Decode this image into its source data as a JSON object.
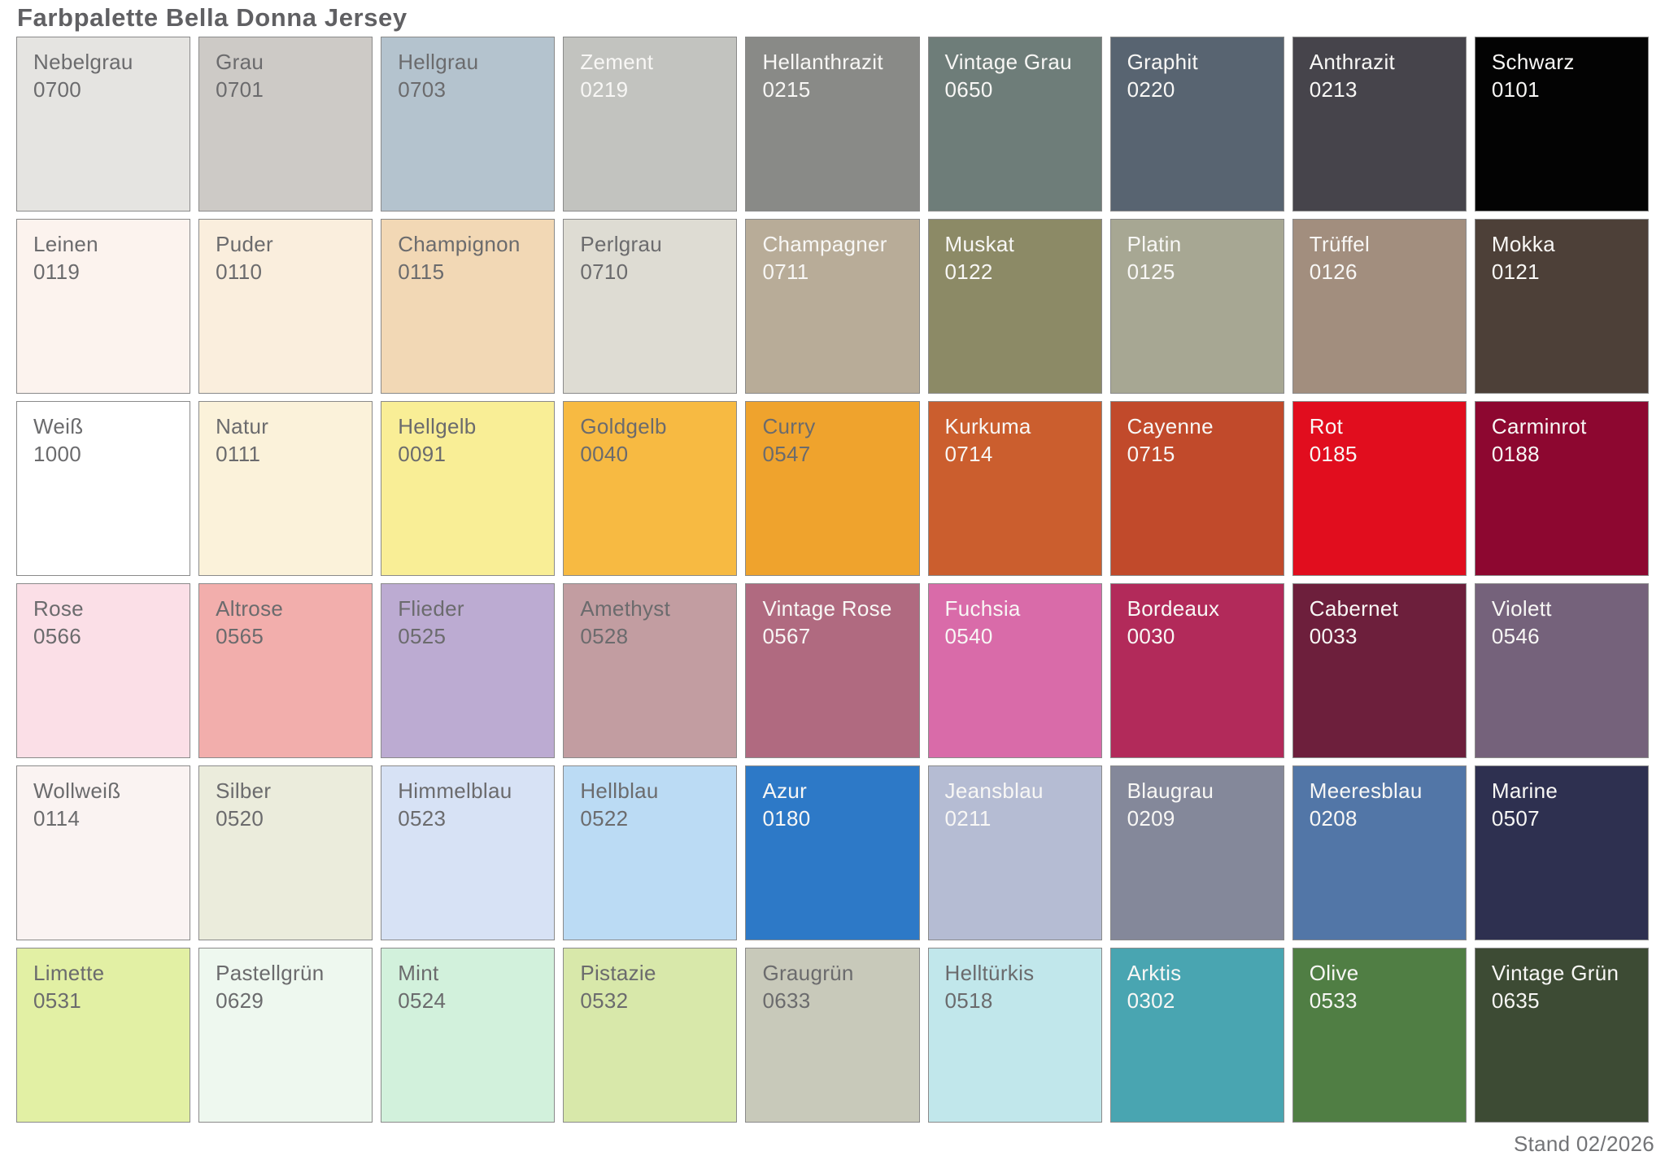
{
  "header": {
    "title": "Farbpalette Bella Donna Jersey"
  },
  "footer": {
    "stand": "Stand 02/2026"
  },
  "ui_colors": {
    "title_text": "#606063",
    "swatch_border": "#8a8a8a",
    "dark_label_text": "#6b6b6d",
    "light_label_text": "#f8f7f5",
    "page_background": "#ffffff"
  },
  "chart_data": {
    "type": "table",
    "title": "Farbpalette Bella Donna Jersey",
    "layout": {
      "rows": 6,
      "cols": 9,
      "order": "row-major"
    },
    "columns": [
      "name",
      "code",
      "hex",
      "label_tone"
    ],
    "rows": [
      [
        "Nebelgrau",
        "0700",
        "#e5e4e1",
        "dark"
      ],
      [
        "Grau",
        "0701",
        "#cdcac6",
        "dark"
      ],
      [
        "Hellgrau",
        "0703",
        "#b4c3ce",
        "dark"
      ],
      [
        "Zement",
        "0219",
        "#c2c3bf",
        "light"
      ],
      [
        "Hellanthrazit",
        "0215",
        "#898a87",
        "light"
      ],
      [
        "Vintage Grau",
        "0650",
        "#6e7d79",
        "light"
      ],
      [
        "Graphit",
        "0220",
        "#586471",
        "light"
      ],
      [
        "Anthrazit",
        "0213",
        "#46444b",
        "light"
      ],
      [
        "Schwarz",
        "0101",
        "#030303",
        "light"
      ],
      [
        "Leinen",
        "0119",
        "#fcf3ee",
        "dark"
      ],
      [
        "Puder",
        "0110",
        "#faeedd",
        "dark"
      ],
      [
        "Champignon",
        "0115",
        "#f2d8b5",
        "dark"
      ],
      [
        "Perlgrau",
        "0710",
        "#dedcd3",
        "dark"
      ],
      [
        "Champagner",
        "0711",
        "#b8ac98",
        "light"
      ],
      [
        "Muskat",
        "0122",
        "#8c8a66",
        "light"
      ],
      [
        "Platin",
        "0125",
        "#a7a793",
        "light"
      ],
      [
        "Trüffel",
        "0126",
        "#a28e7e",
        "light"
      ],
      [
        "Mokka",
        "0121",
        "#4d4038",
        "light"
      ],
      [
        "Weiß",
        "1000",
        "#ffffff",
        "dark"
      ],
      [
        "Natur",
        "0111",
        "#fbf2da",
        "dark"
      ],
      [
        "Hellgelb",
        "0091",
        "#f9ee96",
        "dark"
      ],
      [
        "Goldgelb",
        "0040",
        "#f7ba42",
        "dark"
      ],
      [
        "Curry",
        "0547",
        "#efa32d",
        "dark"
      ],
      [
        "Kurkuma",
        "0714",
        "#cb5e2e",
        "light"
      ],
      [
        "Cayenne",
        "0715",
        "#c14a2b",
        "light"
      ],
      [
        "Rot",
        "0185",
        "#e10d1e",
        "light"
      ],
      [
        "Carminrot",
        "0188",
        "#8d0730",
        "light"
      ],
      [
        "Rose",
        "0566",
        "#fbdfe7",
        "dark"
      ],
      [
        "Altrose",
        "0565",
        "#f2aeac",
        "dark"
      ],
      [
        "Flieder",
        "0525",
        "#bcabd2",
        "dark"
      ],
      [
        "Amethyst",
        "0528",
        "#c29da1",
        "dark"
      ],
      [
        "Vintage Rose",
        "0567",
        "#b06a80",
        "light"
      ],
      [
        "Fuchsia",
        "0540",
        "#d96ba9",
        "light"
      ],
      [
        "Bordeaux",
        "0030",
        "#b22a5a",
        "light"
      ],
      [
        "Cabernet",
        "0033",
        "#6d1f3c",
        "light"
      ],
      [
        "Violett",
        "0546",
        "#75627b",
        "light"
      ],
      [
        "Wollweiß",
        "0114",
        "#faf3f2",
        "dark"
      ],
      [
        "Silber",
        "0520",
        "#ebecdc",
        "dark"
      ],
      [
        "Himmelblau",
        "0523",
        "#d7e2f5",
        "dark"
      ],
      [
        "Hellblau",
        "0522",
        "#bbdbf4",
        "dark"
      ],
      [
        "Azur",
        "0180",
        "#2d79c7",
        "light"
      ],
      [
        "Jeansblau",
        "0211",
        "#b5bcd3",
        "light"
      ],
      [
        "Blaugrau",
        "0209",
        "#84889a",
        "light"
      ],
      [
        "Meeresblau",
        "0208",
        "#5276a7",
        "light"
      ],
      [
        "Marine",
        "0507",
        "#2e3050",
        "light"
      ],
      [
        "Limette",
        "0531",
        "#e2f0a4",
        "dark"
      ],
      [
        "Pastellgrün",
        "0629",
        "#eef8ef",
        "dark"
      ],
      [
        "Mint",
        "0524",
        "#d2f1dc",
        "dark"
      ],
      [
        "Pistazie",
        "0532",
        "#d8e8aa",
        "dark"
      ],
      [
        "Graugrün",
        "0633",
        "#c8c9ba",
        "dark"
      ],
      [
        "Helltürkis",
        "0518",
        "#c1e7eb",
        "dark"
      ],
      [
        "Arktis",
        "0302",
        "#49a5b1",
        "light"
      ],
      [
        "Olive",
        "0533",
        "#507e44",
        "light"
      ],
      [
        "Vintage Grün",
        "0635",
        "#3d4b34",
        "light"
      ]
    ]
  }
}
